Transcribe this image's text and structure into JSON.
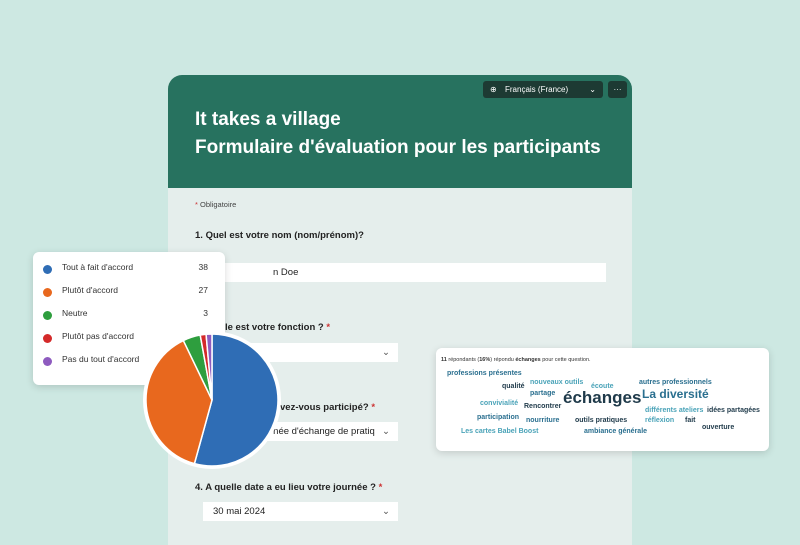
{
  "form": {
    "language": "Français (France)",
    "more": "···",
    "title_line1": "It takes a village",
    "title_line2": "Formulaire d'évaluation pour les participants",
    "required_note": "Obligatoire",
    "required_mark": "*",
    "questions": [
      {
        "number": "1.",
        "text": "Quel est votre nom (nom/prénom)?",
        "answer": "n Doe"
      },
      {
        "text": "le est votre fonction ?",
        "required": "*"
      },
      {
        "text": "vez-vous participé?",
        "required": "*",
        "answer": "rnée d'échange de pratiq"
      },
      {
        "number": "4.",
        "text": "A quelle date a eu lieu votre journée ?",
        "required": "*",
        "answer": "30 mai 2024"
      }
    ]
  },
  "chart_data": {
    "type": "pie",
    "categories": [
      "Tout à fait d'accord",
      "Plutôt d'accord",
      "Neutre",
      "Plutôt pas d'accord",
      "Pas du tout d'accord"
    ],
    "values": [
      38,
      27,
      3,
      1,
      1
    ],
    "colors": [
      "#2f6db5",
      "#e8681e",
      "#2e9e3e",
      "#d42a2a",
      "#8e5bbf"
    ]
  },
  "word_cloud": {
    "note": [
      "11",
      " répondants (",
      "16%",
      ") répondu ",
      "échanges",
      " pour cette question."
    ],
    "words": [
      "professions présentes",
      "qualité",
      "nouveaux outils",
      "partage",
      "écoute",
      "autres professionnels",
      "convivialité",
      "Rencontrer",
      "échanges",
      "La diversité",
      "participation",
      "nourriture",
      "outils pratiques",
      "différents ateliers",
      "idées partagées",
      "réflexion",
      "fait",
      "Les cartes Babel Boost",
      "ambiance générale",
      "ouverture"
    ]
  }
}
